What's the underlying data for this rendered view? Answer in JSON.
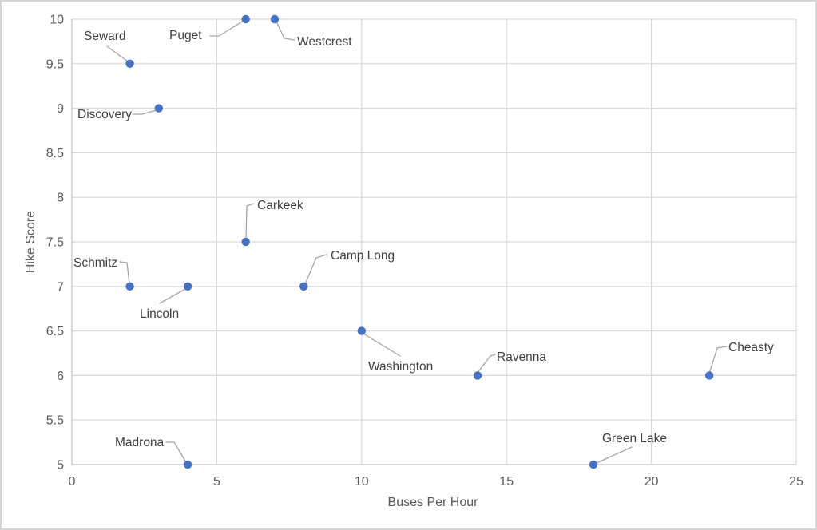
{
  "chart_data": {
    "type": "scatter",
    "title": "",
    "xlabel": "Buses Per Hour",
    "ylabel": "Hike Score",
    "xlim": [
      0,
      25
    ],
    "ylim": [
      5,
      10
    ],
    "x_ticks": [
      0,
      5,
      10,
      15,
      20,
      25
    ],
    "y_ticks": [
      5,
      5.5,
      6,
      6.5,
      7,
      7.5,
      8,
      8.5,
      9,
      9.5,
      10
    ],
    "grid": true,
    "legend": "none",
    "colors": {
      "point": "#4472C4",
      "gridline": "#D9D9D9",
      "axis_line": "#BFBFBF",
      "tick_label": "#595959",
      "data_label": "#404040",
      "leader_line": "#A6A6A6",
      "frame_border": "#D6D6D6"
    },
    "points": [
      {
        "label": "Seward",
        "x": 2,
        "y": 9.5
      },
      {
        "label": "Puget",
        "x": 6,
        "y": 10
      },
      {
        "label": "Westcrest",
        "x": 7,
        "y": 10
      },
      {
        "label": "Discovery",
        "x": 3,
        "y": 9
      },
      {
        "label": "Carkeek",
        "x": 6,
        "y": 7.5
      },
      {
        "label": "Schmitz",
        "x": 2,
        "y": 7
      },
      {
        "label": "Lincoln",
        "x": 4,
        "y": 7
      },
      {
        "label": "Camp Long",
        "x": 8,
        "y": 7
      },
      {
        "label": "Washington",
        "x": 10,
        "y": 6.5
      },
      {
        "label": "Ravenna",
        "x": 14,
        "y": 6
      },
      {
        "label": "Cheasty",
        "x": 22,
        "y": 6
      },
      {
        "label": "Madrona",
        "x": 4,
        "y": 5
      },
      {
        "label": "Green Lake",
        "x": 18,
        "y": 5
      }
    ]
  }
}
